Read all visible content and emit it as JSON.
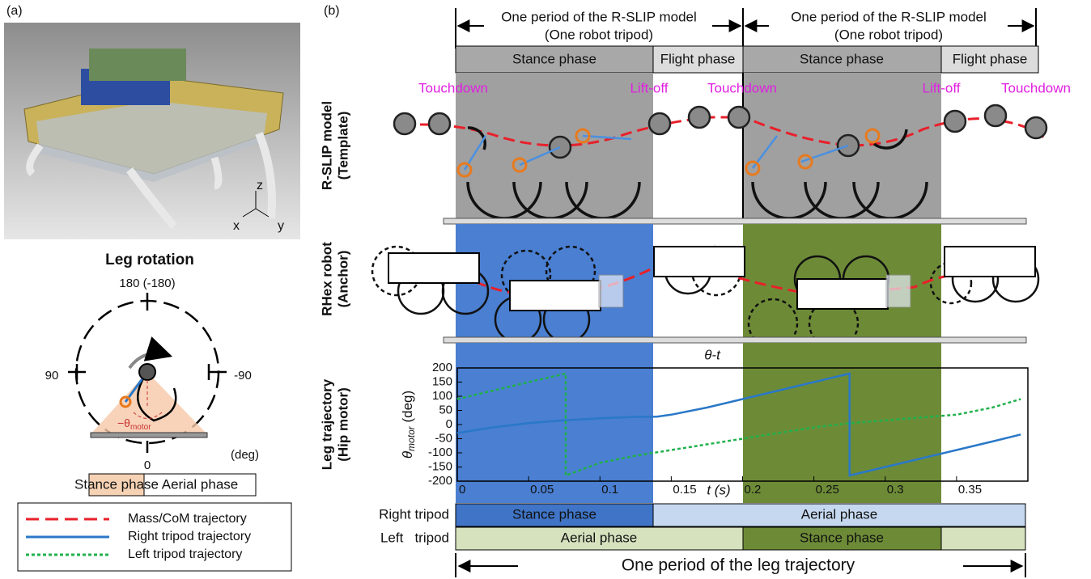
{
  "panel_a": {
    "label": "(a)",
    "axes": [
      "z",
      "x",
      "y"
    ],
    "leg_rotation": {
      "title": "Leg rotation",
      "dial": [
        "180 (-180)",
        "90",
        "-90",
        "0"
      ],
      "unit": "(deg)",
      "theta": [
        "−θ",
        "motor"
      ],
      "phases": [
        "Stance phase",
        "Aerial phase"
      ]
    },
    "legend": [
      {
        "name": "Mass/CoM trajectory",
        "color": "#e8202a"
      },
      {
        "name": "Right tripod trajectory",
        "color": "#2a78c8"
      },
      {
        "name": "Left tripod trajectory",
        "color": "#22b14c"
      }
    ]
  },
  "panel_b": {
    "label": "(b)",
    "period": [
      "One period of the R-SLIP model",
      "(One robot tripod)"
    ],
    "phases": [
      "Stance phase",
      "Flight phase",
      "Stance phase",
      "Flight phase"
    ],
    "events": [
      "Touchdown",
      "Lift-off",
      "Touchdown",
      "Lift-off",
      "Touchdown"
    ],
    "rows": [
      [
        "R-SLIP model",
        "(Template)"
      ],
      [
        "RHex robot",
        "(Anchor)"
      ],
      [
        "Leg trajectory",
        "(Hip motor)"
      ]
    ],
    "tripods": [
      {
        "name": "Right tripod",
        "phases": [
          "Stance phase",
          "Aerial phase"
        ]
      },
      {
        "name": "Left   tripod",
        "phases": [
          "Aerial phase",
          "Stance phase"
        ]
      }
    ],
    "leg_period": "One period of the leg trajectory"
  },
  "chart_data": {
    "type": "line",
    "title": "θ-t",
    "xlabel": "t (s)",
    "ylabel": [
      "θ",
      "motor",
      " (deg)"
    ],
    "xlim": [
      0,
      0.4
    ],
    "ylim": [
      -200,
      200
    ],
    "xticks": [
      0,
      0.05,
      0.1,
      0.15,
      0.2,
      0.25,
      0.3,
      0.35
    ],
    "yticks": [
      -200,
      -150,
      -100,
      -50,
      0,
      50,
      100,
      150,
      200
    ],
    "series": [
      {
        "name": "Right tripod trajectory",
        "color": "#2a78c8",
        "style": "solid",
        "x": [
          0,
          0.025,
          0.05,
          0.075,
          0.1,
          0.125,
          0.14,
          0.15,
          0.175,
          0.2,
          0.225,
          0.25,
          0.275,
          0.275,
          0.3,
          0.325,
          0.35,
          0.375,
          0.395
        ],
        "values": [
          -30,
          -10,
          5,
          15,
          22,
          27,
          28,
          35,
          60,
          90,
          120,
          150,
          180,
          -180,
          -150,
          -120,
          -90,
          -60,
          -35
        ]
      },
      {
        "name": "Left tripod trajectory",
        "color": "#22b14c",
        "style": "dotted",
        "x": [
          0,
          0.025,
          0.05,
          0.076,
          0.076,
          0.1,
          0.125,
          0.15,
          0.175,
          0.2,
          0.225,
          0.25,
          0.275,
          0.3,
          0.325,
          0.35,
          0.375,
          0.395
        ],
        "values": [
          90,
          120,
          150,
          180,
          -180,
          -135,
          -110,
          -90,
          -70,
          -50,
          -30,
          -10,
          5,
          15,
          25,
          35,
          60,
          90
        ]
      }
    ]
  }
}
